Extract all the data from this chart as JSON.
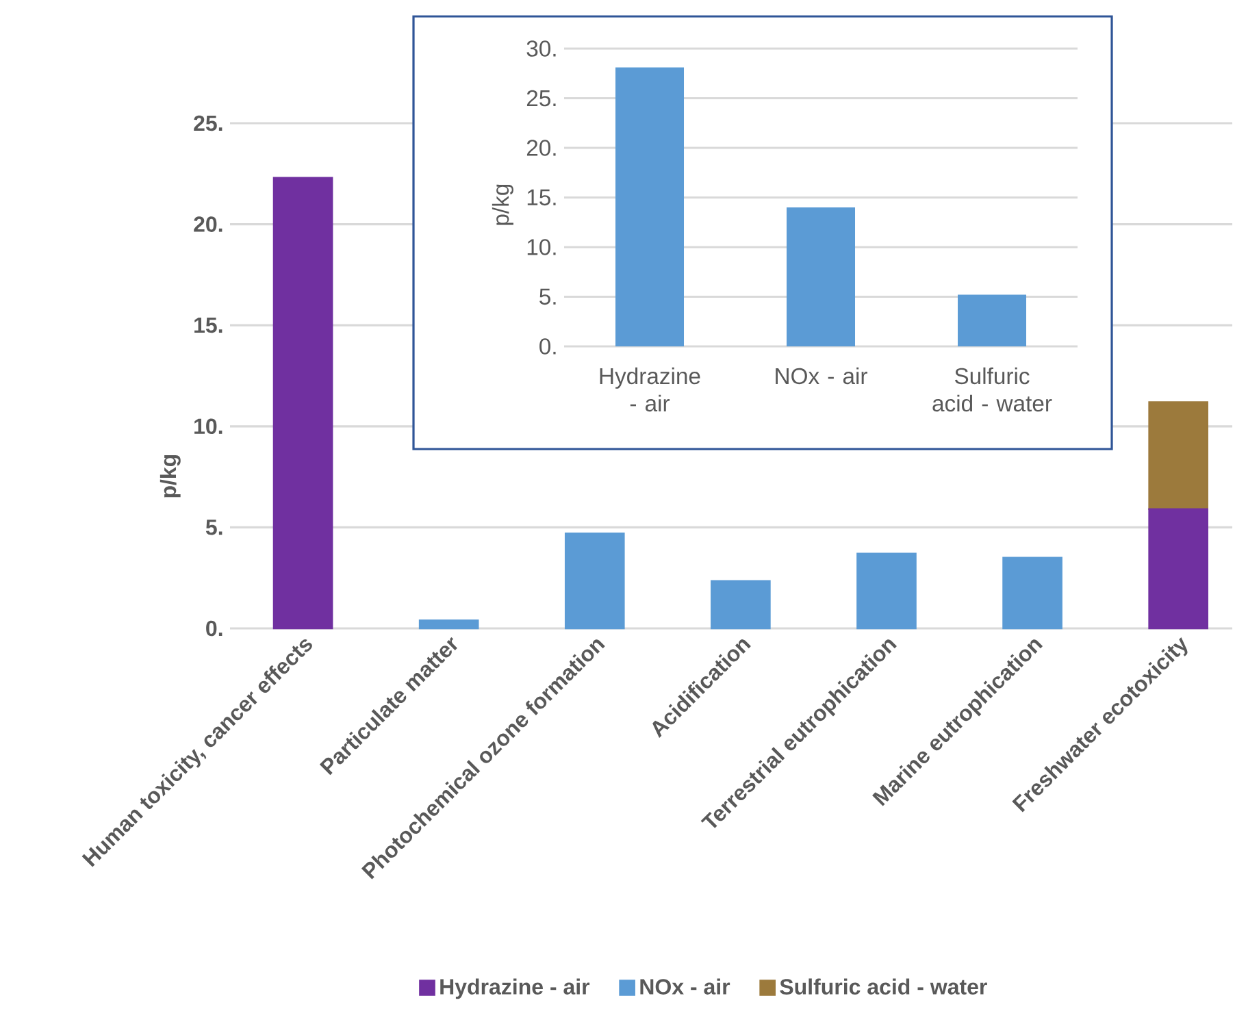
{
  "chart_data": [
    {
      "type": "bar",
      "ylabel": "p/kg",
      "categories": [
        "Human toxicity, cancer effects",
        "Particulate matter",
        "Photochemical ozone formation",
        "Acidification",
        "Terrestrial eutrophication",
        "Marine eutrophication",
        "Freshwater ecotoxicity"
      ],
      "stacked": true,
      "series": [
        {
          "name": "Hydrazine - air",
          "color": "#7030a0",
          "values": [
            22.3,
            null,
            null,
            null,
            null,
            null,
            5.9
          ]
        },
        {
          "name": "NOx - air",
          "color": "#5b9bd5",
          "values": [
            null,
            0.4,
            4.7,
            2.35,
            3.7,
            3.5,
            null
          ]
        },
        {
          "name": "Sulfuric acid - water",
          "color": "#9c7a3c",
          "values": [
            null,
            null,
            null,
            null,
            null,
            null,
            5.3
          ]
        }
      ],
      "ylim": [
        0,
        25
      ],
      "yticks": [
        {
          "value": 0,
          "label": "0."
        },
        {
          "value": 5,
          "label": "5."
        },
        {
          "value": 10,
          "label": "10."
        },
        {
          "value": 15,
          "label": "15."
        },
        {
          "value": 20,
          "label": "20."
        },
        {
          "value": 25,
          "label": "25."
        }
      ],
      "grid": "y",
      "legend": "bottom"
    },
    {
      "type": "bar",
      "ylabel": "p/kg",
      "categories": [
        "Hydrazine - air",
        "NOx - air",
        "Sulfuric acid - water"
      ],
      "values": [
        28.1,
        14.0,
        5.2
      ],
      "color": "#5b9bd5",
      "ylim": [
        0,
        30
      ],
      "yticks": [
        {
          "value": 0,
          "label": "0."
        },
        {
          "value": 5,
          "label": "5."
        },
        {
          "value": 10,
          "label": "10."
        },
        {
          "value": 15,
          "label": "15."
        },
        {
          "value": 20,
          "label": "20."
        },
        {
          "value": 25,
          "label": "25."
        },
        {
          "value": 30,
          "label": "30."
        }
      ],
      "grid": "y"
    }
  ]
}
